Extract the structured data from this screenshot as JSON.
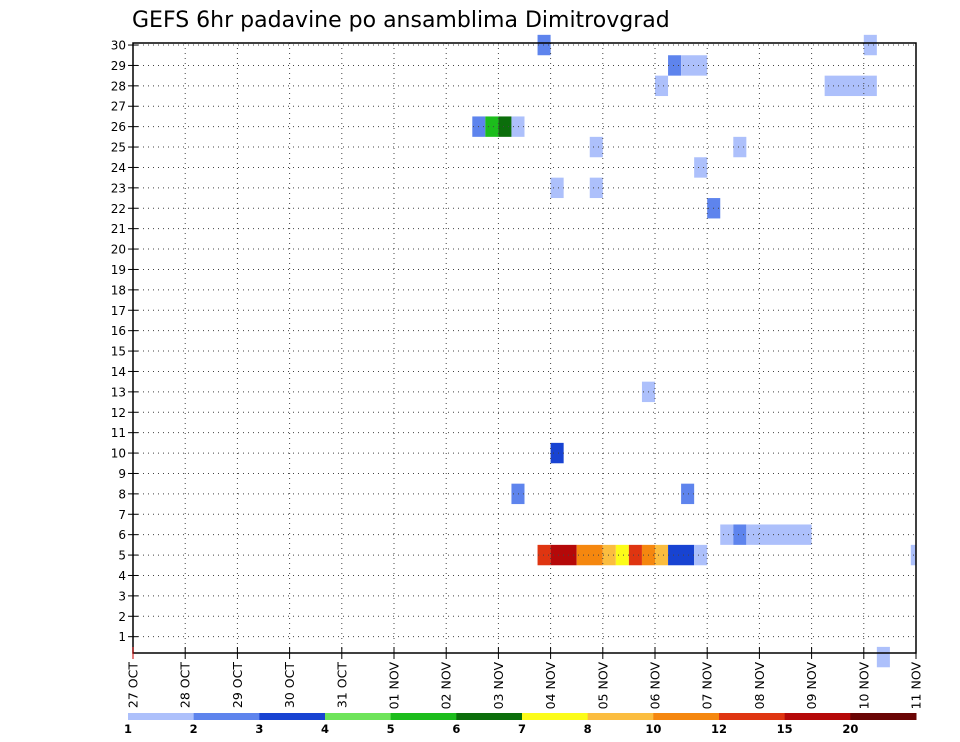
{
  "chart_data": {
    "type": "heatmap",
    "title": "GEFS 6hr padavine po ansamblima Dimitrovgrad",
    "xlabel": "",
    "ylabel": "",
    "x_tick_labels": [
      "27 OCT",
      "28 OCT",
      "29 OCT",
      "30 OCT",
      "31 OCT",
      "01 NOV",
      "02 NOV",
      "03 NOV",
      "04 NOV",
      "05 NOV",
      "06 NOV",
      "07 NOV",
      "08 NOV",
      "09 NOV",
      "10 NOV",
      "11 NOV"
    ],
    "x_range_days": [
      0,
      15
    ],
    "y_tick_labels": [
      "1",
      "2",
      "3",
      "4",
      "5",
      "6",
      "7",
      "8",
      "9",
      "10",
      "11",
      "12",
      "13",
      "14",
      "15",
      "16",
      "17",
      "18",
      "19",
      "20",
      "21",
      "22",
      "23",
      "24",
      "25",
      "26",
      "27",
      "28",
      "29",
      "30"
    ],
    "y_range": [
      0.2,
      30.1
    ],
    "grid": true,
    "legend": "colorbar-bottom",
    "colorbar": {
      "labels": [
        "1",
        "2",
        "3",
        "4",
        "5",
        "6",
        "7",
        "8",
        "10",
        "12",
        "15",
        "20"
      ],
      "colors": [
        "#adc0fb",
        "#5e84ed",
        "#1843d2",
        "#6ee45a",
        "#1cbd1c",
        "#0b6e0b",
        "#fcfc19",
        "#fbbd3f",
        "#f5870f",
        "#df3511",
        "#b50909",
        "#6a0505"
      ]
    },
    "cells": [
      {
        "member": 30,
        "day_start": 7.75,
        "day_end": 8.0,
        "level": 2
      },
      {
        "member": 30,
        "day_start": 14.0,
        "day_end": 14.25,
        "level": 1
      },
      {
        "member": 29,
        "day_start": 10.25,
        "day_end": 10.5,
        "level": 2
      },
      {
        "member": 29,
        "day_start": 10.5,
        "day_end": 11.0,
        "level": 1
      },
      {
        "member": 28,
        "day_start": 10.0,
        "day_end": 10.25,
        "level": 1
      },
      {
        "member": 28,
        "day_start": 13.25,
        "day_end": 14.25,
        "level": 1
      },
      {
        "member": 26,
        "day_start": 6.5,
        "day_end": 6.75,
        "level": 2
      },
      {
        "member": 26,
        "day_start": 6.75,
        "day_end": 7.0,
        "level": 5
      },
      {
        "member": 26,
        "day_start": 7.0,
        "day_end": 7.25,
        "level": 6
      },
      {
        "member": 26,
        "day_start": 7.25,
        "day_end": 7.5,
        "level": 1
      },
      {
        "member": 25,
        "day_start": 8.75,
        "day_end": 9.0,
        "level": 1
      },
      {
        "member": 25,
        "day_start": 11.5,
        "day_end": 11.75,
        "level": 1
      },
      {
        "member": 24,
        "day_start": 10.75,
        "day_end": 11.0,
        "level": 1
      },
      {
        "member": 23,
        "day_start": 8.0,
        "day_end": 8.25,
        "level": 1
      },
      {
        "member": 23,
        "day_start": 8.75,
        "day_end": 9.0,
        "level": 1
      },
      {
        "member": 22,
        "day_start": 11.0,
        "day_end": 11.25,
        "level": 2
      },
      {
        "member": 13,
        "day_start": 9.75,
        "day_end": 10.0,
        "level": 1
      },
      {
        "member": 10,
        "day_start": 8.0,
        "day_end": 8.25,
        "level": 3
      },
      {
        "member": 8,
        "day_start": 7.25,
        "day_end": 7.5,
        "level": 2
      },
      {
        "member": 8,
        "day_start": 10.5,
        "day_end": 10.75,
        "level": 2
      },
      {
        "member": 6,
        "day_start": 11.25,
        "day_end": 11.5,
        "level": 1
      },
      {
        "member": 6,
        "day_start": 11.5,
        "day_end": 11.75,
        "level": 2
      },
      {
        "member": 6,
        "day_start": 11.75,
        "day_end": 13.0,
        "level": 1
      },
      {
        "member": 5,
        "day_start": 7.75,
        "day_end": 8.0,
        "level": 10
      },
      {
        "member": 5,
        "day_start": 8.0,
        "day_end": 8.5,
        "level": 11
      },
      {
        "member": 5,
        "day_start": 8.5,
        "day_end": 9.0,
        "level": 9
      },
      {
        "member": 5,
        "day_start": 9.0,
        "day_end": 9.25,
        "level": 8
      },
      {
        "member": 5,
        "day_start": 9.25,
        "day_end": 9.5,
        "level": 7
      },
      {
        "member": 5,
        "day_start": 9.5,
        "day_end": 9.75,
        "level": 10
      },
      {
        "member": 5,
        "day_start": 9.75,
        "day_end": 10.0,
        "level": 9
      },
      {
        "member": 5,
        "day_start": 10.0,
        "day_end": 10.25,
        "level": 8
      },
      {
        "member": 5,
        "day_start": 10.25,
        "day_end": 10.75,
        "level": 3
      },
      {
        "member": 5,
        "day_start": 10.75,
        "day_end": 11.0,
        "level": 1
      },
      {
        "member": 5,
        "day_start": 14.9,
        "day_end": 15.0,
        "level": 1
      },
      {
        "member": 0,
        "day_start": 14.25,
        "day_end": 14.5,
        "level": 1
      }
    ]
  }
}
